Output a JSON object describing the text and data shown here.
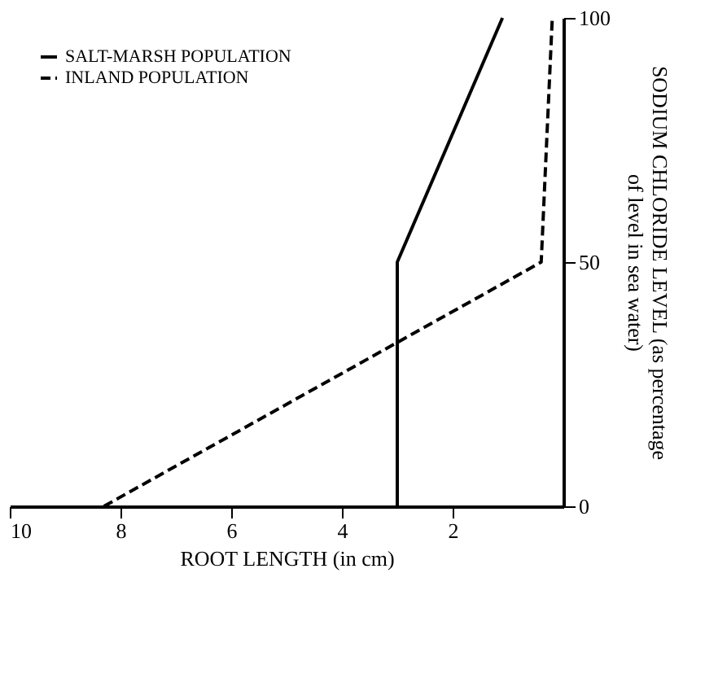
{
  "chart_data": {
    "type": "line",
    "orientation": "horizontal",
    "xlabel": "ROOT LENGTH (in cm)",
    "ylabel": "SODIUM CHLORIDE LEVEL (as percentage\nof level in sea water)",
    "x": [
      0,
      50,
      100
    ],
    "series": [
      {
        "name": "SALT-MARSH POPULATION",
        "color": "#000000",
        "line_style": "solid",
        "values": [
          3.0,
          3.0,
          1.1
        ]
      },
      {
        "name": "INLAND POPULATION",
        "color": "#000000",
        "line_style": "dashed",
        "values": [
          8.3,
          0.4,
          0.2
        ]
      }
    ],
    "xlim": [
      10,
      0
    ],
    "xticks": [
      10,
      8,
      6,
      4,
      2
    ],
    "ylim": [
      0,
      100
    ],
    "yticks": [
      0,
      50,
      100
    ],
    "grid": false,
    "legend": "top left",
    "marker": "none"
  }
}
